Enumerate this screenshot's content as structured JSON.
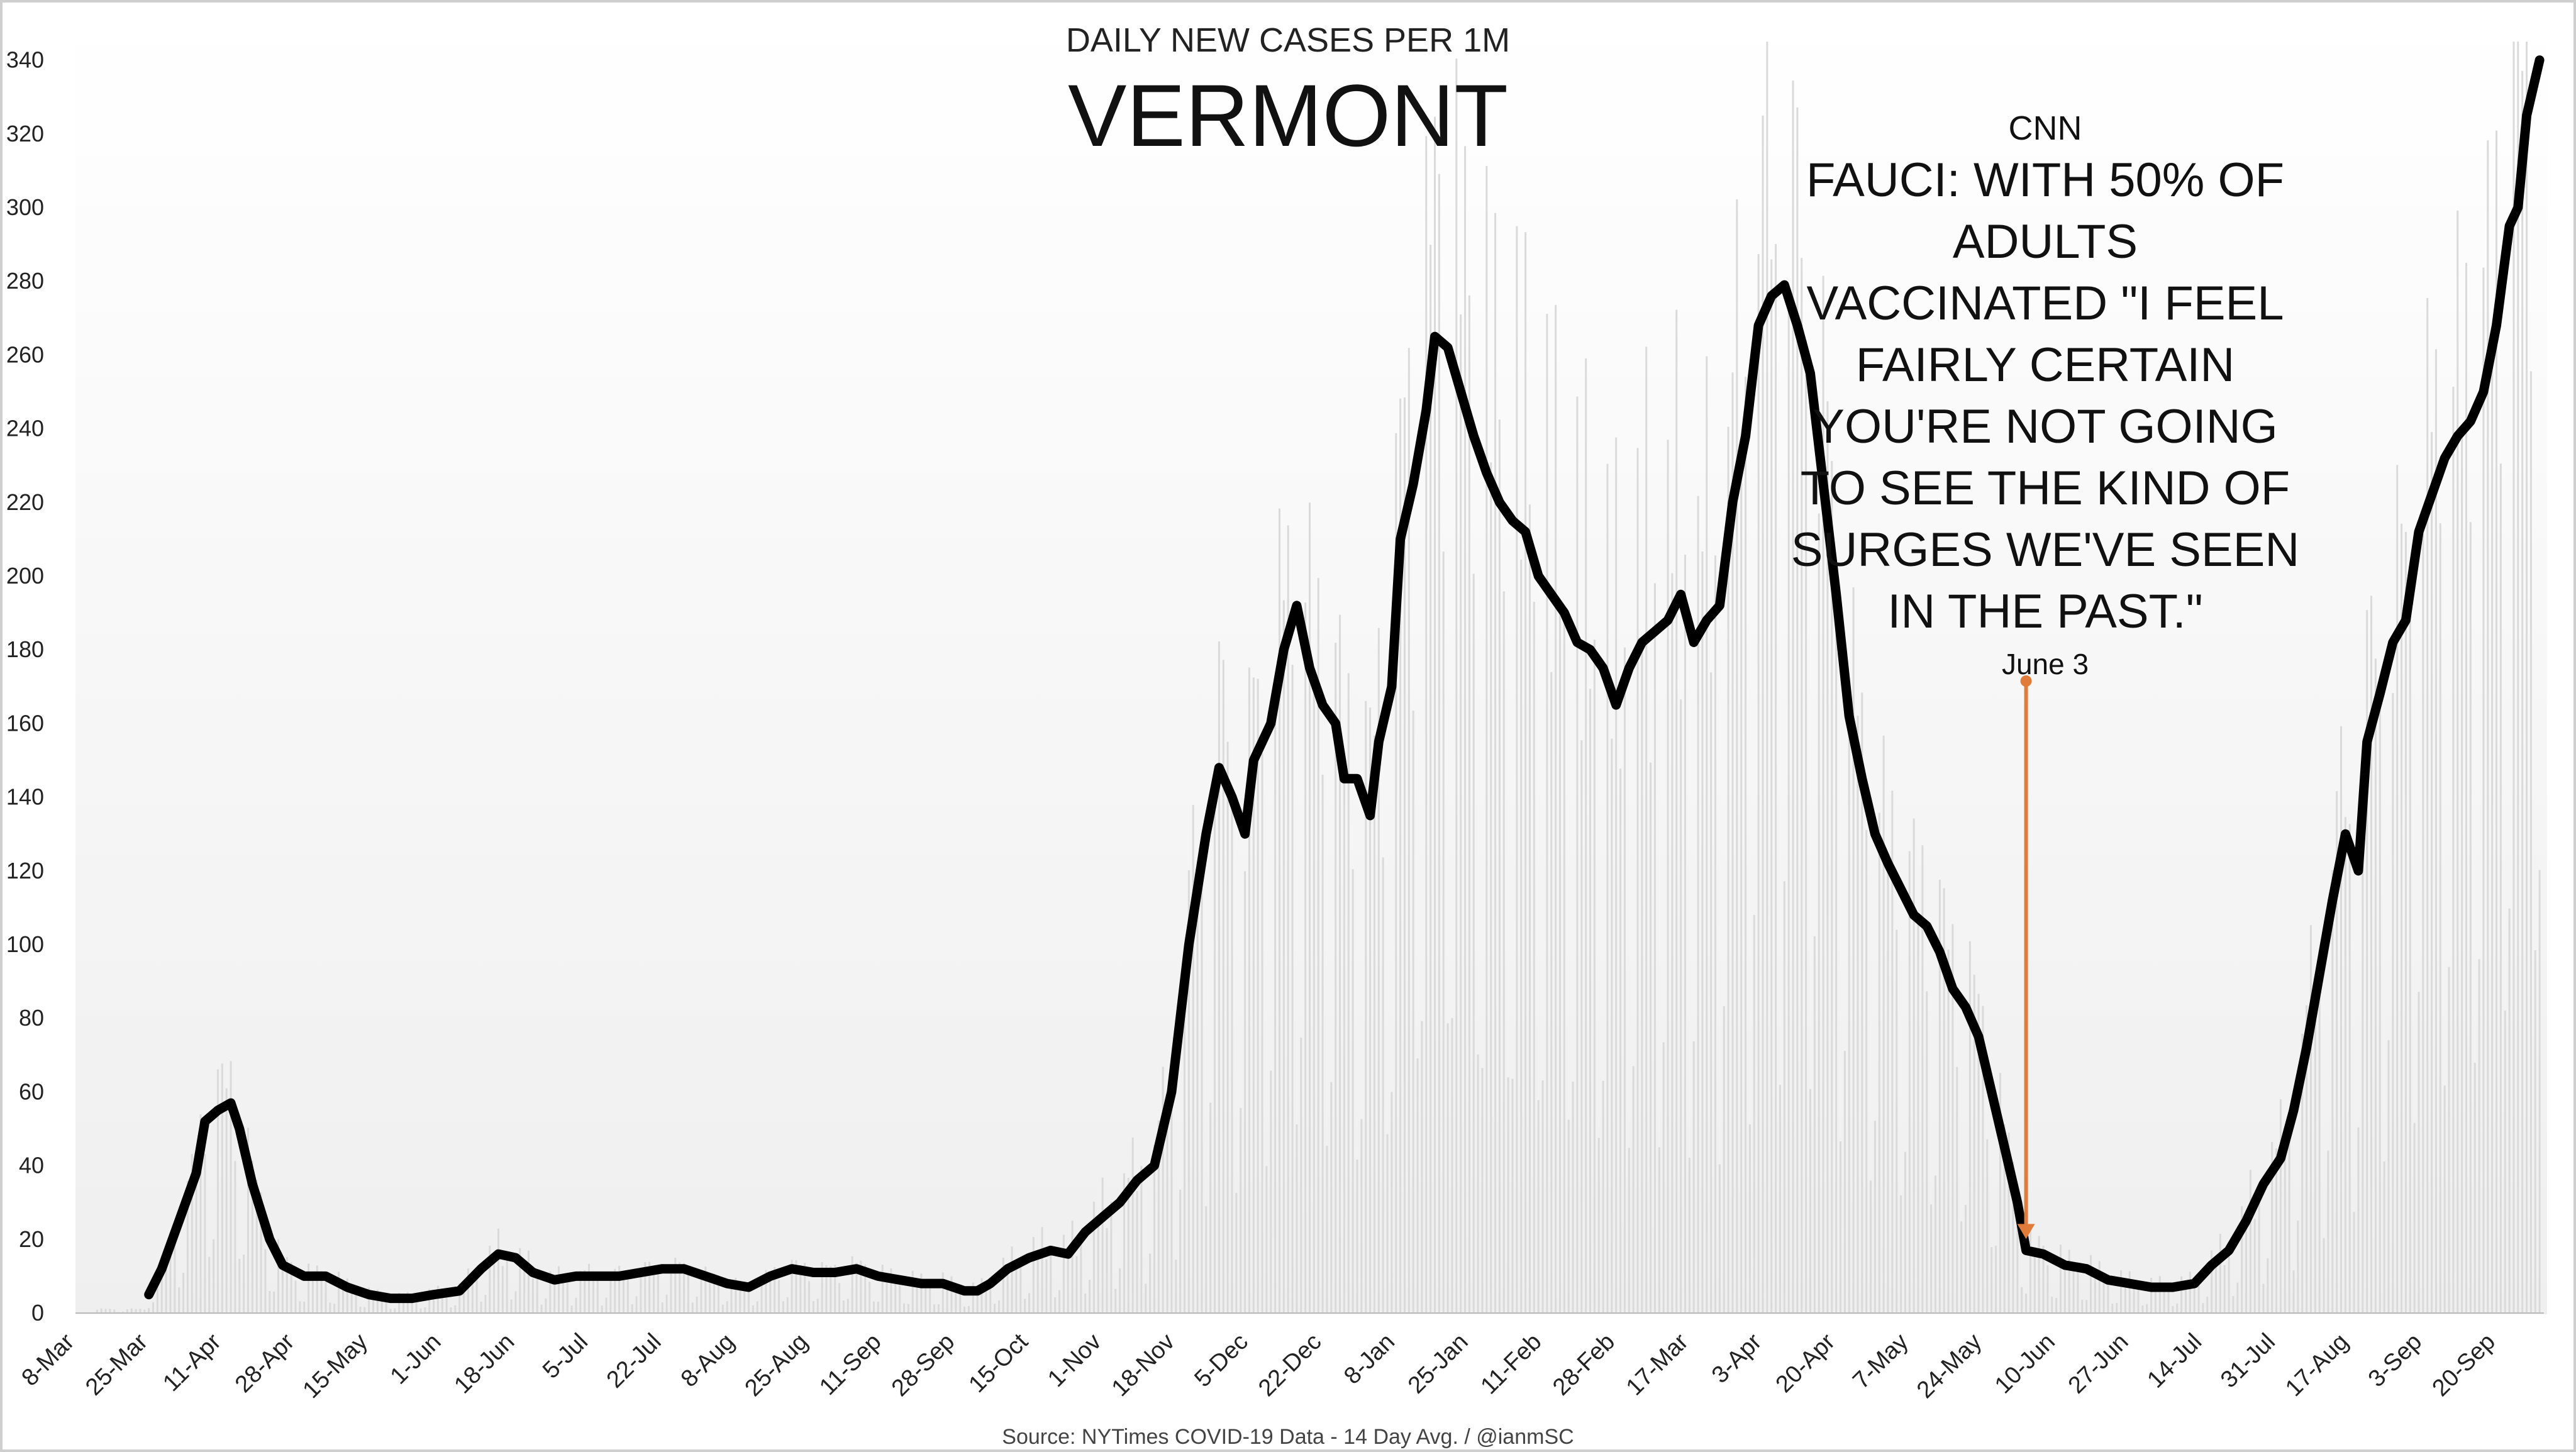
{
  "chart_data": {
    "type": "line",
    "subtitle": "DAILY NEW CASES PER 1M",
    "title": "VERMONT",
    "source": "Source: NYTimes COVID-19 Data - 14 Day Avg. / @ianmSC",
    "ylim": [
      0,
      345
    ],
    "yticks": [
      0,
      20,
      40,
      60,
      80,
      100,
      120,
      140,
      160,
      180,
      200,
      220,
      240,
      260,
      280,
      300,
      320,
      340
    ],
    "xlim": [
      "2020-03-08",
      "2021-10-01"
    ],
    "xticks": [
      "8-Mar",
      "25-Mar",
      "11-Apr",
      "28-Apr",
      "15-May",
      "1-Jun",
      "18-Jun",
      "5-Jul",
      "22-Jul",
      "8-Aug",
      "25-Aug",
      "11-Sep",
      "28-Sep",
      "15-Oct",
      "1-Nov",
      "18-Nov",
      "5-Dec",
      "22-Dec",
      "8-Jan",
      "25-Jan",
      "11-Feb",
      "28-Feb",
      "17-Mar",
      "3-Apr",
      "20-Apr",
      "7-May",
      "24-May",
      "10-Jun",
      "27-Jun",
      "14-Jul",
      "31-Jul",
      "17-Aug",
      "3-Sep",
      "20-Sep"
    ],
    "grid": false,
    "annotation": {
      "source_label": "CNN",
      "headline": "FAUCI: WITH 50% OF ADULTS VACCINATED \"I FEEL FAIRLY CERTAIN YOU'RE NOT GOING TO SEE THE KIND OF SURGES WE'VE SEEN IN THE PAST.\"",
      "headline_lines": [
        "FAUCI: WITH 50% OF",
        "ADULTS",
        "VACCINATED \"I FEEL",
        "FAIRLY CERTAIN",
        "YOU'RE NOT GOING",
        "TO SEE THE KIND OF",
        "SURGES WE'VE SEEN",
        "IN THE PAST.\""
      ],
      "date_label": "June 3",
      "date": "2021-06-03",
      "value": 17,
      "arrow_color": "#e07b39"
    },
    "colors": {
      "line": "#000000",
      "bars": "#d9d9d9",
      "arrow": "#e07b39"
    },
    "series": [
      {
        "values": [
          [
            "2020-03-25",
            5
          ],
          [
            "2020-03-28",
            12
          ],
          [
            "2020-04-01",
            25
          ],
          [
            "2020-04-05",
            38
          ],
          [
            "2020-04-07",
            52
          ],
          [
            "2020-04-10",
            55
          ],
          [
            "2020-04-13",
            57
          ],
          [
            "2020-04-15",
            50
          ],
          [
            "2020-04-18",
            35
          ],
          [
            "2020-04-22",
            20
          ],
          [
            "2020-04-25",
            13
          ],
          [
            "2020-04-30",
            10
          ],
          [
            "2020-05-05",
            10
          ],
          [
            "2020-05-10",
            7
          ],
          [
            "2020-05-15",
            5
          ],
          [
            "2020-05-20",
            4
          ],
          [
            "2020-05-25",
            4
          ],
          [
            "2020-05-30",
            5
          ],
          [
            "2020-06-05",
            6
          ],
          [
            "2020-06-10",
            12
          ],
          [
            "2020-06-14",
            16
          ],
          [
            "2020-06-18",
            15
          ],
          [
            "2020-06-22",
            11
          ],
          [
            "2020-06-27",
            9
          ],
          [
            "2020-07-02",
            10
          ],
          [
            "2020-07-07",
            10
          ],
          [
            "2020-07-12",
            10
          ],
          [
            "2020-07-17",
            11
          ],
          [
            "2020-07-22",
            12
          ],
          [
            "2020-07-27",
            12
          ],
          [
            "2020-08-01",
            10
          ],
          [
            "2020-08-06",
            8
          ],
          [
            "2020-08-11",
            7
          ],
          [
            "2020-08-16",
            10
          ],
          [
            "2020-08-21",
            12
          ],
          [
            "2020-08-26",
            11
          ],
          [
            "2020-08-31",
            11
          ],
          [
            "2020-09-05",
            12
          ],
          [
            "2020-09-10",
            10
          ],
          [
            "2020-09-15",
            9
          ],
          [
            "2020-09-20",
            8
          ],
          [
            "2020-09-25",
            8
          ],
          [
            "2020-09-30",
            6
          ],
          [
            "2020-10-03",
            6
          ],
          [
            "2020-10-06",
            8
          ],
          [
            "2020-10-10",
            12
          ],
          [
            "2020-10-15",
            15
          ],
          [
            "2020-10-20",
            17
          ],
          [
            "2020-10-24",
            16
          ],
          [
            "2020-10-28",
            22
          ],
          [
            "2020-11-01",
            26
          ],
          [
            "2020-11-05",
            30
          ],
          [
            "2020-11-09",
            36
          ],
          [
            "2020-11-13",
            40
          ],
          [
            "2020-11-17",
            60
          ],
          [
            "2020-11-21",
            100
          ],
          [
            "2020-11-25",
            130
          ],
          [
            "2020-11-28",
            148
          ],
          [
            "2020-12-01",
            140
          ],
          [
            "2020-12-04",
            130
          ],
          [
            "2020-12-06",
            150
          ],
          [
            "2020-12-10",
            160
          ],
          [
            "2020-12-13",
            180
          ],
          [
            "2020-12-16",
            192
          ],
          [
            "2020-12-19",
            175
          ],
          [
            "2020-12-22",
            165
          ],
          [
            "2020-12-25",
            160
          ],
          [
            "2020-12-27",
            145
          ],
          [
            "2020-12-30",
            145
          ],
          [
            "2021-01-02",
            135
          ],
          [
            "2021-01-04",
            155
          ],
          [
            "2021-01-07",
            170
          ],
          [
            "2021-01-09",
            210
          ],
          [
            "2021-01-12",
            225
          ],
          [
            "2021-01-15",
            245
          ],
          [
            "2021-01-17",
            265
          ],
          [
            "2021-01-20",
            262
          ],
          [
            "2021-01-23",
            250
          ],
          [
            "2021-01-26",
            238
          ],
          [
            "2021-01-29",
            228
          ],
          [
            "2021-02-01",
            220
          ],
          [
            "2021-02-04",
            215
          ],
          [
            "2021-02-07",
            212
          ],
          [
            "2021-02-10",
            200
          ],
          [
            "2021-02-13",
            195
          ],
          [
            "2021-02-16",
            190
          ],
          [
            "2021-02-19",
            182
          ],
          [
            "2021-02-22",
            180
          ],
          [
            "2021-02-25",
            175
          ],
          [
            "2021-02-28",
            165
          ],
          [
            "2021-03-03",
            175
          ],
          [
            "2021-03-06",
            182
          ],
          [
            "2021-03-09",
            185
          ],
          [
            "2021-03-12",
            188
          ],
          [
            "2021-03-15",
            195
          ],
          [
            "2021-03-18",
            182
          ],
          [
            "2021-03-21",
            188
          ],
          [
            "2021-03-24",
            192
          ],
          [
            "2021-03-27",
            220
          ],
          [
            "2021-03-30",
            238
          ],
          [
            "2021-04-02",
            268
          ],
          [
            "2021-04-05",
            276
          ],
          [
            "2021-04-08",
            279
          ],
          [
            "2021-04-11",
            268
          ],
          [
            "2021-04-14",
            255
          ],
          [
            "2021-04-17",
            225
          ],
          [
            "2021-04-20",
            195
          ],
          [
            "2021-04-23",
            162
          ],
          [
            "2021-04-26",
            145
          ],
          [
            "2021-04-29",
            130
          ],
          [
            "2021-05-02",
            122
          ],
          [
            "2021-05-05",
            115
          ],
          [
            "2021-05-08",
            108
          ],
          [
            "2021-05-11",
            105
          ],
          [
            "2021-05-14",
            98
          ],
          [
            "2021-05-17",
            88
          ],
          [
            "2021-05-20",
            83
          ],
          [
            "2021-05-23",
            75
          ],
          [
            "2021-05-26",
            60
          ],
          [
            "2021-05-29",
            45
          ],
          [
            "2021-06-01",
            30
          ],
          [
            "2021-06-03",
            17
          ],
          [
            "2021-06-07",
            16
          ],
          [
            "2021-06-12",
            13
          ],
          [
            "2021-06-17",
            12
          ],
          [
            "2021-06-22",
            9
          ],
          [
            "2021-06-27",
            8
          ],
          [
            "2021-07-02",
            7
          ],
          [
            "2021-07-07",
            7
          ],
          [
            "2021-07-12",
            8
          ],
          [
            "2021-07-16",
            13
          ],
          [
            "2021-07-20",
            17
          ],
          [
            "2021-07-24",
            25
          ],
          [
            "2021-07-28",
            35
          ],
          [
            "2021-08-01",
            42
          ],
          [
            "2021-08-04",
            55
          ],
          [
            "2021-08-07",
            72
          ],
          [
            "2021-08-10",
            92
          ],
          [
            "2021-08-13",
            112
          ],
          [
            "2021-08-16",
            130
          ],
          [
            "2021-08-19",
            120
          ],
          [
            "2021-08-21",
            155
          ],
          [
            "2021-08-24",
            168
          ],
          [
            "2021-08-27",
            182
          ],
          [
            "2021-08-30",
            188
          ],
          [
            "2021-09-02",
            212
          ],
          [
            "2021-09-05",
            222
          ],
          [
            "2021-09-08",
            232
          ],
          [
            "2021-09-11",
            238
          ],
          [
            "2021-09-14",
            242
          ],
          [
            "2021-09-17",
            250
          ],
          [
            "2021-09-20",
            268
          ],
          [
            "2021-09-23",
            295
          ],
          [
            "2021-09-25",
            300
          ],
          [
            "2021-09-27",
            325
          ],
          [
            "2021-09-30",
            340
          ]
        ]
      }
    ]
  }
}
